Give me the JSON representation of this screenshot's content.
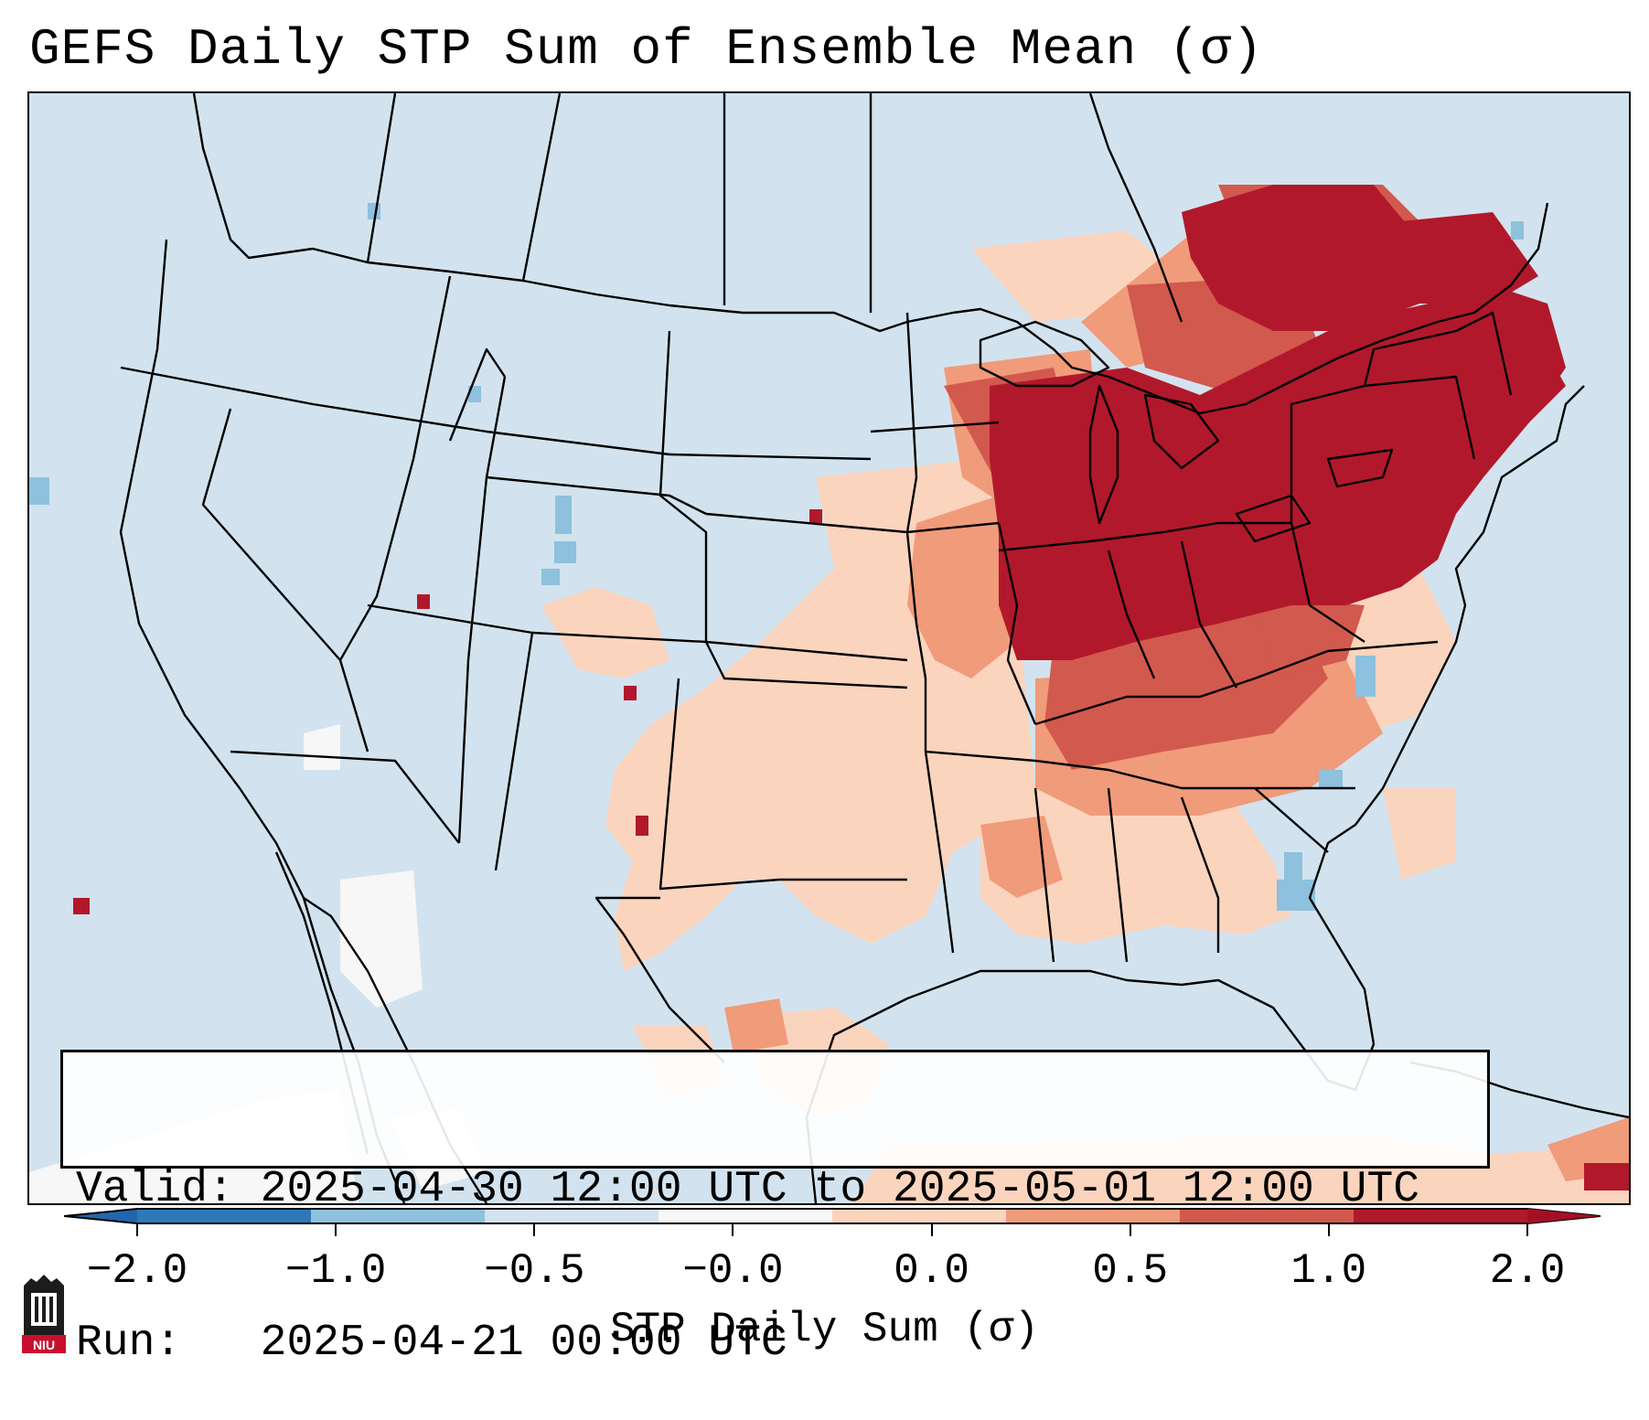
{
  "title": "GEFS Daily STP Sum of Ensemble Mean (σ)",
  "info": {
    "valid_label": "Valid:",
    "valid_value": "2025-04-30 12:00 UTC to 2025-05-01 12:00 UTC",
    "run_label": "Run:",
    "run_value": "2025-04-21 00:00 UTC"
  },
  "colorbar": {
    "label": "STP Daily Sum (σ)",
    "ticks": [
      "−2.0",
      "−1.0",
      "−0.5",
      "−0.0",
      "0.0",
      "0.5",
      "1.0",
      "2.0"
    ],
    "bin_colors": [
      "#2f78b8",
      "#8dc1dd",
      "#d2e3ef",
      "#f7f7f7",
      "#fbd4be",
      "#f09b7a",
      "#d2594d",
      "#b2182b"
    ],
    "extend_low_color": "#2166ac",
    "extend_high_color": "#a50f25"
  },
  "colors": {
    "ocean_land_base": "#d2e3ef",
    "light_red": "#fbd4be",
    "medium_red": "#f09b7a",
    "red": "#d2594d",
    "dark_red": "#b2182b",
    "light_blue": "#8dc1dd",
    "border": "#000000"
  },
  "logo": {
    "text": "NIU",
    "icon": "niu-logo-icon"
  }
}
